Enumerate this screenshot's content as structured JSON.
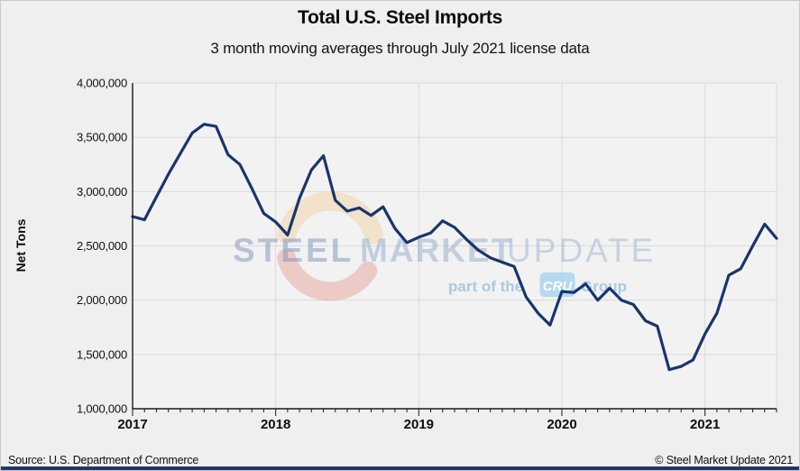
{
  "chart_data": {
    "type": "line",
    "title": "Total U.S. Steel Imports",
    "subtitle": "3 month moving averages through July 2021 license data",
    "ylabel": "Net Tons",
    "xlabel": "",
    "ylim": [
      1000000,
      4000000
    ],
    "y_tick_interval": 500000,
    "y_tick_labels": [
      "4,000,000",
      "3,500,000",
      "3,000,000",
      "2,500,000",
      "2,000,000",
      "1,500,000",
      "1,000,000"
    ],
    "x_tick_labels": [
      "2017",
      "2018",
      "2019",
      "2020",
      "2021"
    ],
    "grid": "horizontal and yearly vertical",
    "legend": "none",
    "line_color": "#1a356b",
    "series": [
      {
        "name": "Total U.S. Steel Imports (3-month moving average)",
        "months": [
          "2017-01",
          "2017-02",
          "2017-03",
          "2017-04",
          "2017-05",
          "2017-06",
          "2017-07",
          "2017-08",
          "2017-09",
          "2017-10",
          "2017-11",
          "2017-12",
          "2018-01",
          "2018-02",
          "2018-03",
          "2018-04",
          "2018-05",
          "2018-06",
          "2018-07",
          "2018-08",
          "2018-09",
          "2018-10",
          "2018-11",
          "2018-12",
          "2019-01",
          "2019-02",
          "2019-03",
          "2019-04",
          "2019-05",
          "2019-06",
          "2019-07",
          "2019-08",
          "2019-09",
          "2019-10",
          "2019-11",
          "2019-12",
          "2020-01",
          "2020-02",
          "2020-03",
          "2020-04",
          "2020-05",
          "2020-06",
          "2020-07",
          "2020-08",
          "2020-09",
          "2020-10",
          "2020-11",
          "2020-12",
          "2021-01",
          "2021-02",
          "2021-03",
          "2021-04",
          "2021-05",
          "2021-06",
          "2021-07"
        ],
        "values": [
          2770000,
          2740000,
          2950000,
          3160000,
          3350000,
          3540000,
          3620000,
          3600000,
          3340000,
          3250000,
          3030000,
          2800000,
          2720000,
          2600000,
          2940000,
          3200000,
          3330000,
          2920000,
          2820000,
          2850000,
          2780000,
          2860000,
          2660000,
          2530000,
          2580000,
          2620000,
          2730000,
          2670000,
          2560000,
          2460000,
          2390000,
          2350000,
          2310000,
          2030000,
          1880000,
          1770000,
          2080000,
          2070000,
          2150000,
          2000000,
          2110000,
          2000000,
          1960000,
          1810000,
          1760000,
          1360000,
          1390000,
          1450000,
          1690000,
          1880000,
          2230000,
          2290000,
          2500000,
          2700000,
          2570000
        ]
      }
    ]
  },
  "watermark": {
    "steel": "STEEL",
    "market": "MARKET",
    "update": "UPDATE",
    "part_of_the": "part of the",
    "cru": "CRU",
    "group": "Group"
  },
  "footer": {
    "source": "Source: U.S. Department of Commerce",
    "copyright": "© Steel Market Update 2021"
  },
  "colors": {
    "background": "#efefef",
    "plot_background": "#f2f2f2",
    "gridline": "#dadada",
    "axis": "#1a1a1a",
    "line": "#1a356b",
    "footer_bar": "#1e3862",
    "swoosh_top": "#f3d3ab",
    "swoosh_bottom": "#e6a49c",
    "watermark_text": "#8aa4c8",
    "cru_badge": "#a5d2ec"
  }
}
